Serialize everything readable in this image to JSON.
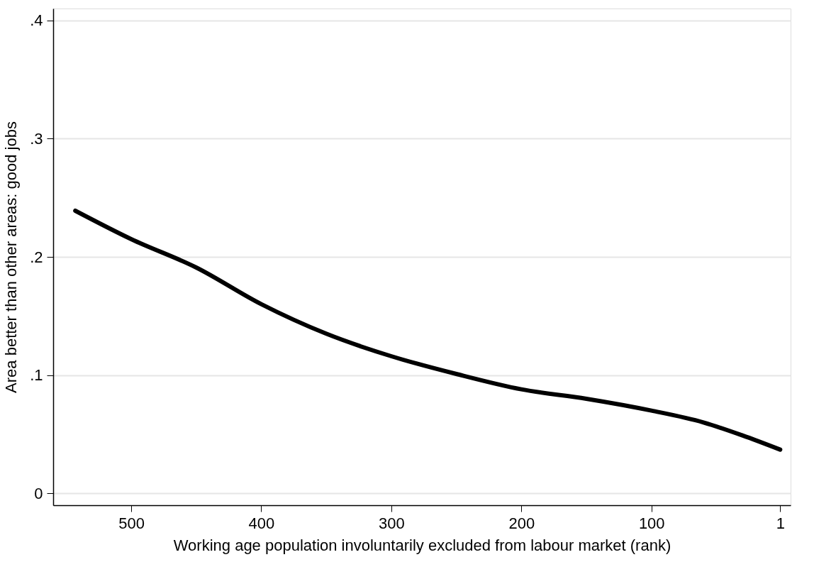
{
  "chart_data": {
    "type": "line",
    "xlabel": "Working age population involuntarily excluded from labour market (rank)",
    "ylabel": "Area better than other areas: good jobs",
    "x": [
      543,
      500,
      450,
      400,
      350,
      300,
      250,
      200,
      150,
      100,
      60,
      30,
      1
    ],
    "series": [
      {
        "color": "#000000",
        "values": [
          0.239,
          0.215,
          0.191,
          0.16,
          0.135,
          0.116,
          0.101,
          0.088,
          0.08,
          0.07,
          0.06,
          0.049,
          0.037
        ]
      }
    ],
    "xlim": [
      560,
      -7
    ],
    "xticks": [
      500,
      400,
      300,
      200,
      100,
      1
    ],
    "ylim": [
      -0.01,
      0.41
    ],
    "yticks": [
      {
        "value": 0,
        "label": "0"
      },
      {
        "value": 0.1,
        "label": ".1"
      },
      {
        "value": 0.2,
        "label": ".2"
      },
      {
        "value": 0.3,
        "label": ".3"
      },
      {
        "value": 0.4,
        "label": ".4"
      }
    ],
    "grid": "y",
    "line_style": "solid",
    "marker": "none"
  }
}
